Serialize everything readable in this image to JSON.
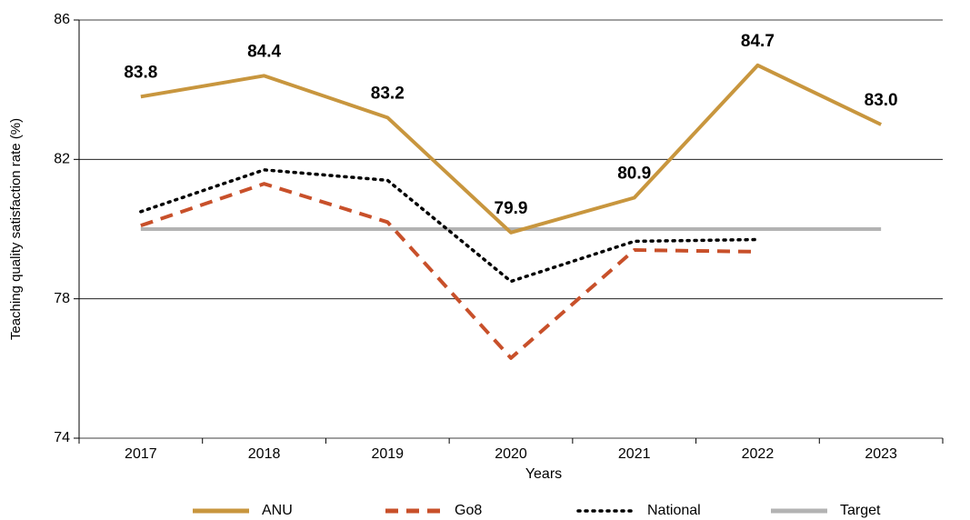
{
  "chart_data": {
    "type": "line",
    "x_label": "Years",
    "y_label": "Teaching quality satisfaction rate (%)",
    "categories": [
      "2017",
      "2018",
      "2019",
      "2020",
      "2021",
      "2022",
      "2023"
    ],
    "series": [
      {
        "name": "ANU",
        "color": "#c8963e",
        "dash": "solid",
        "values": [
          83.8,
          84.4,
          83.2,
          79.9,
          80.9,
          84.7,
          83.0
        ],
        "value_labels": [
          "83.8",
          "84.4",
          "83.2",
          "79.9",
          "80.9",
          "84.7",
          "83.0"
        ]
      },
      {
        "name": "Go8",
        "color": "#c8502a",
        "dash": "dashed",
        "values": [
          80.1,
          81.3,
          80.2,
          76.3,
          79.4,
          79.35,
          null
        ]
      },
      {
        "name": "National",
        "color": "#000000",
        "dash": "dotted",
        "values": [
          80.5,
          81.7,
          81.4,
          78.5,
          79.65,
          79.7,
          null
        ]
      },
      {
        "name": "Target",
        "color": "#b3b3b3",
        "dash": "solid",
        "values": [
          80,
          80,
          80,
          80,
          80,
          80,
          80
        ]
      }
    ],
    "ylim": [
      74,
      86
    ],
    "yticks": [
      74,
      78,
      82,
      86
    ],
    "grid": true,
    "legend": "bottom"
  }
}
